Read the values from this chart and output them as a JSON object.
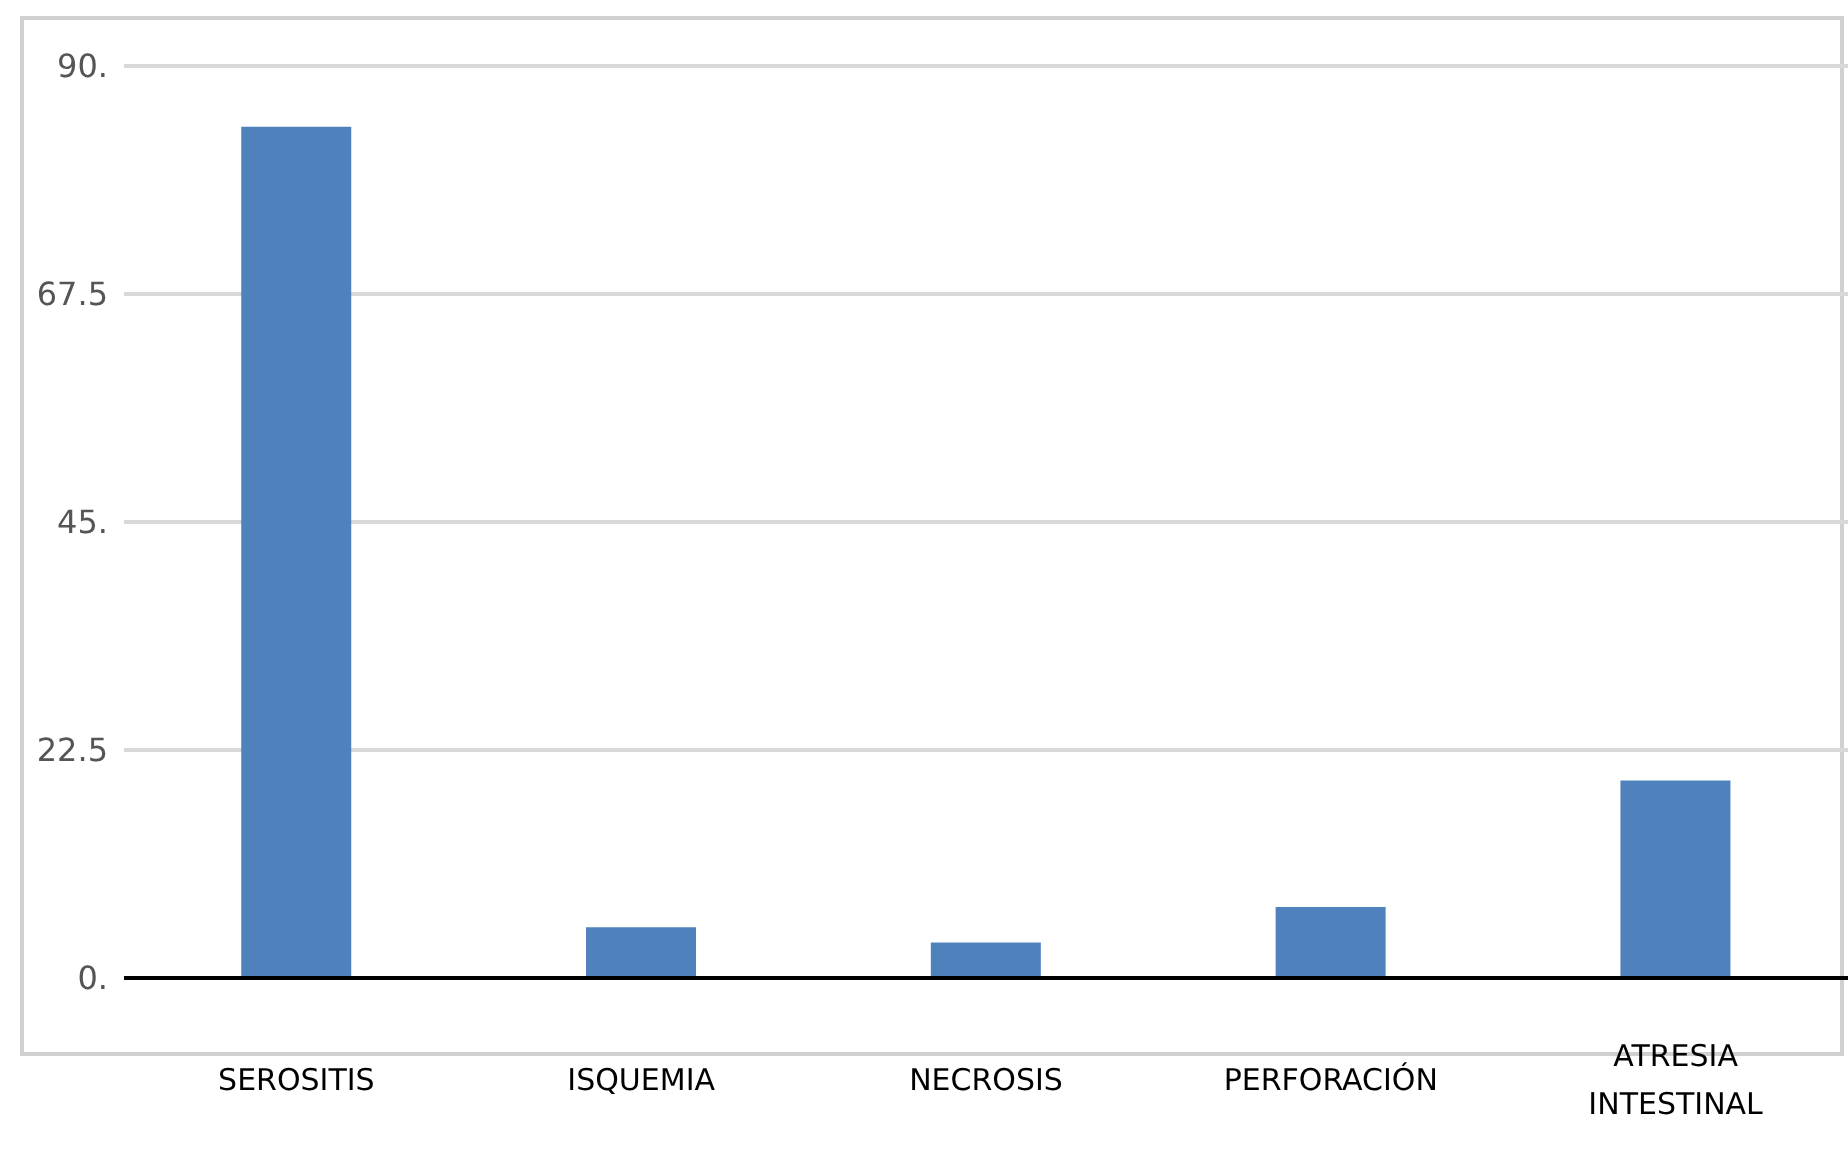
{
  "chart_data": {
    "type": "bar",
    "categories": [
      "SEROSITIS",
      "ISQUEMIA",
      "NECROSIS",
      "PERFORACIÓN",
      "ATRESIA INTESTINAL"
    ],
    "values": [
      84,
      5,
      3.5,
      7,
      19.5
    ],
    "color": "#4f81bd",
    "ylim": [
      0,
      90
    ],
    "yticks": [
      {
        "value": 0,
        "label": "0."
      },
      22.5,
      {
        "value": 45,
        "label": "45."
      },
      67.5,
      {
        "value": 90,
        "label": "90."
      }
    ],
    "grid": "y",
    "legend": false
  }
}
